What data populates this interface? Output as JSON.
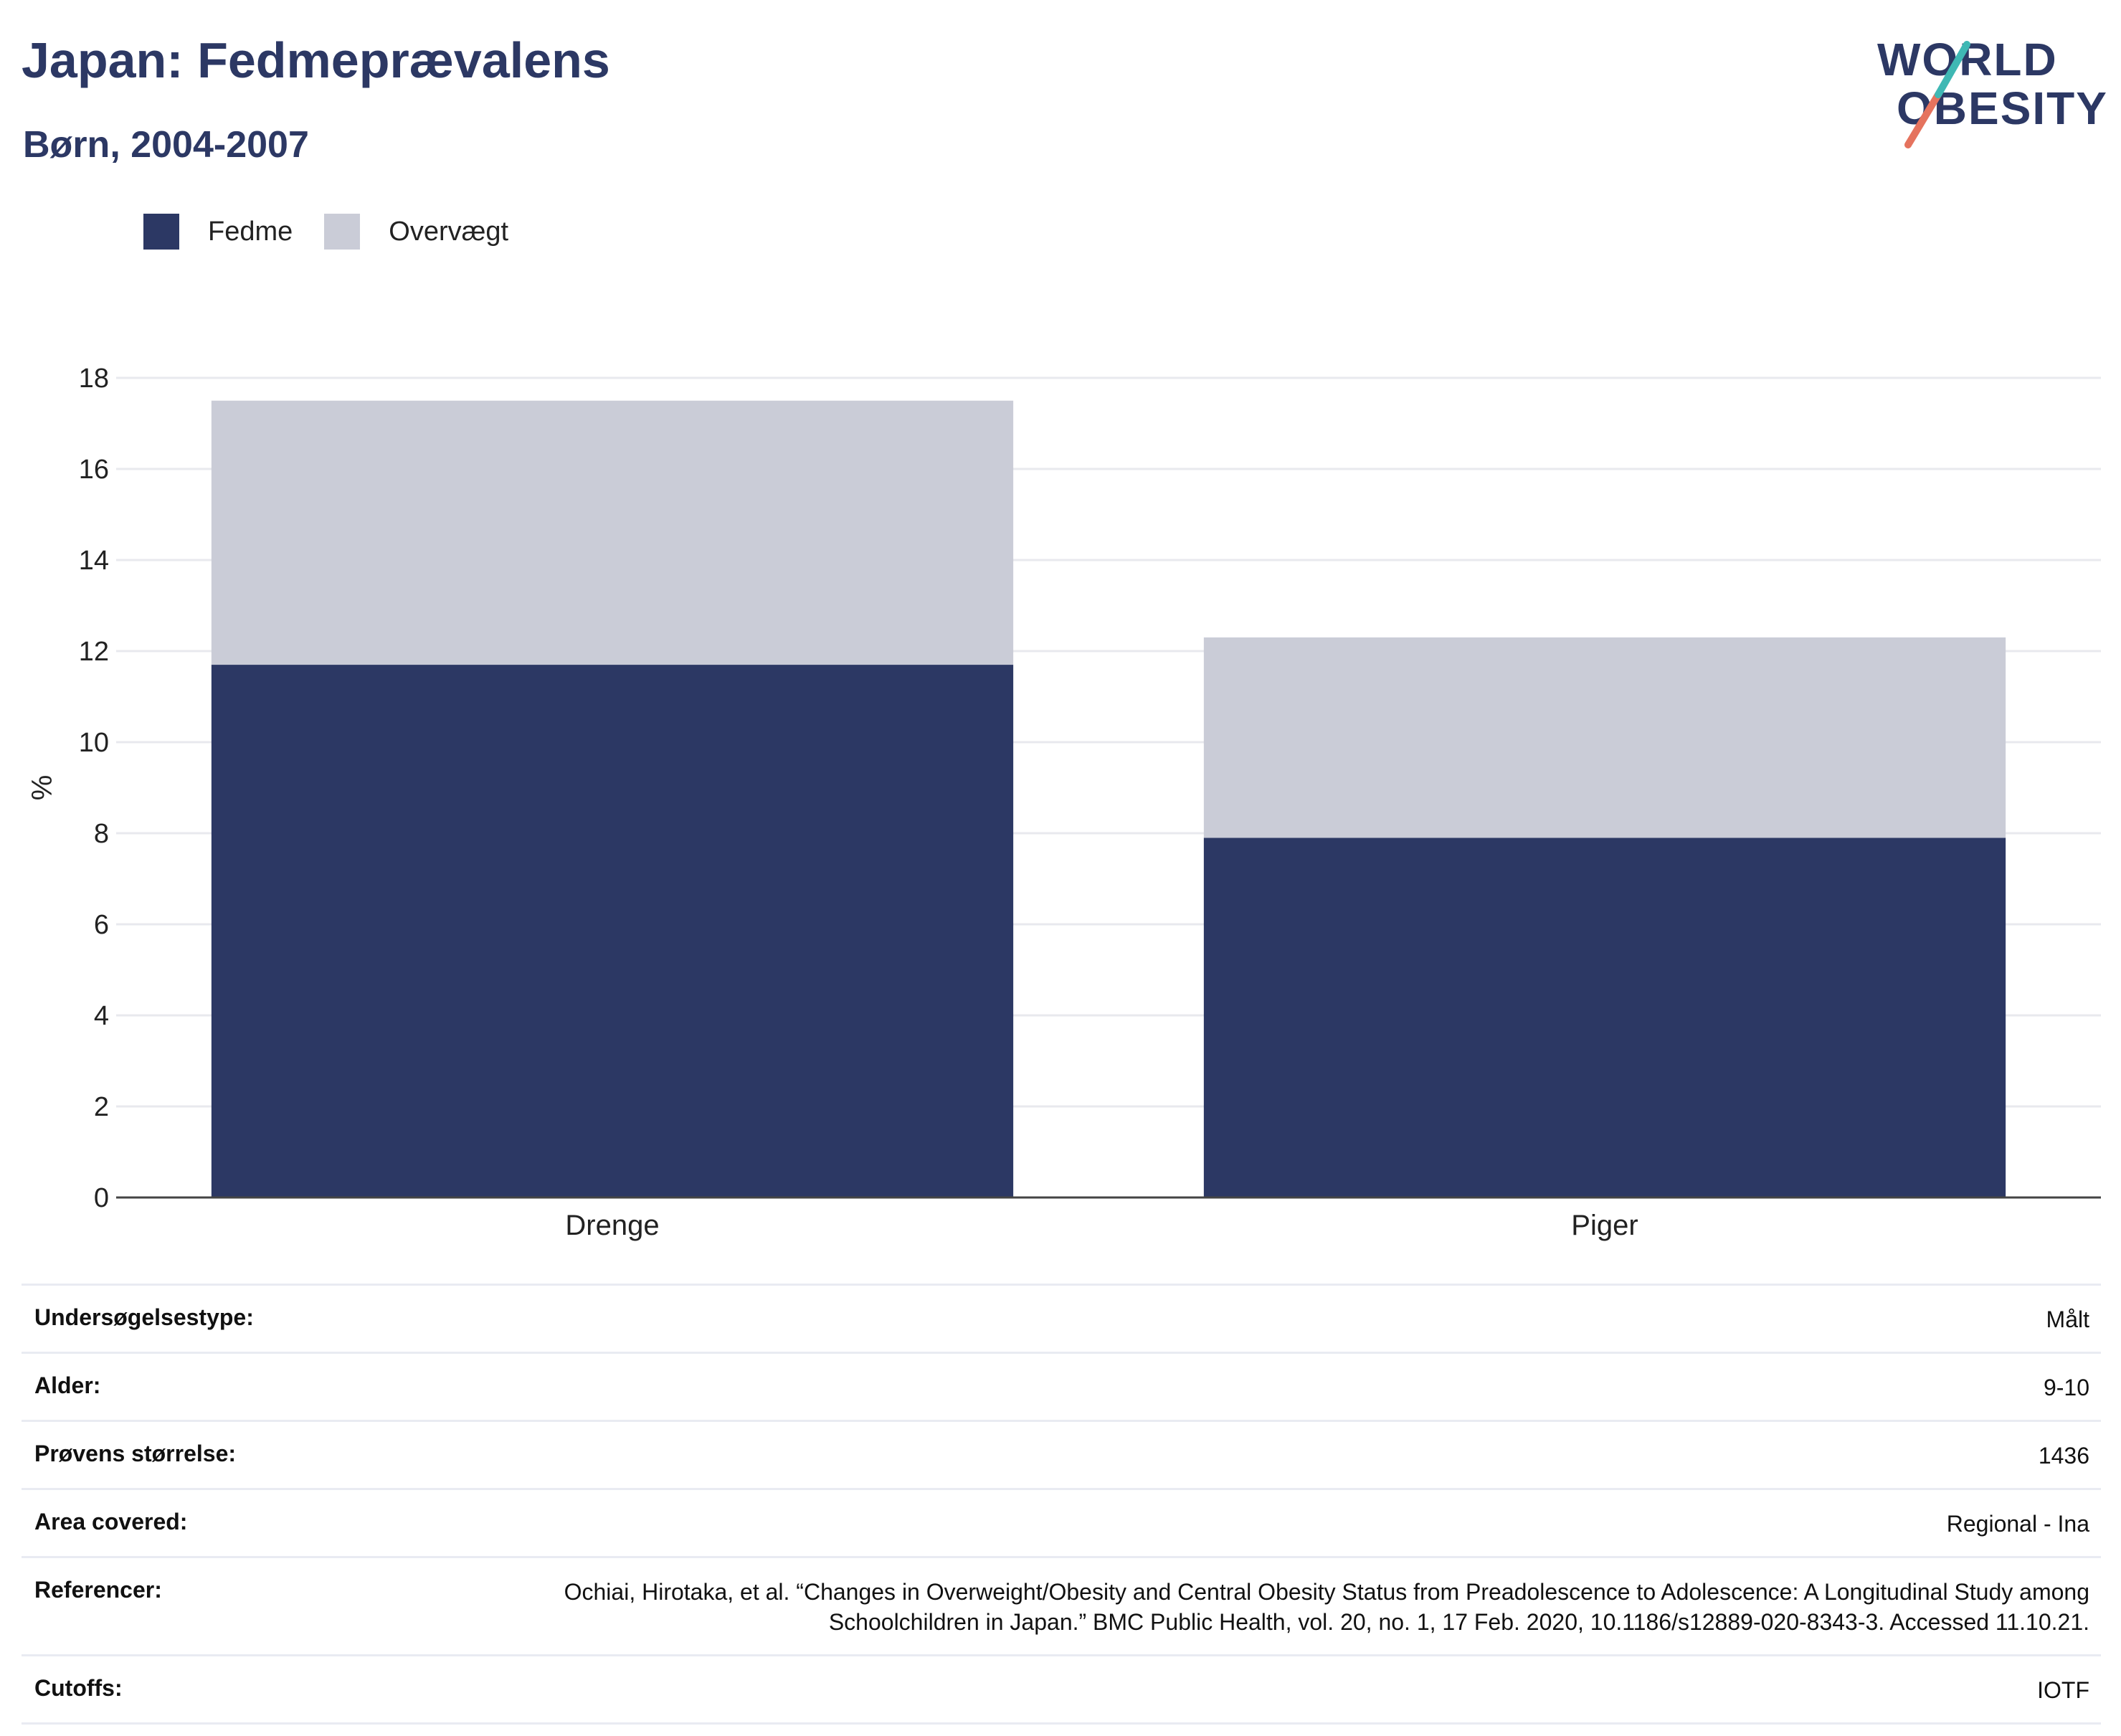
{
  "header": {
    "title": "Japan: Fedmeprævalens",
    "subtitle": "Børn, 2004-2007",
    "logo_line1": "WORLD",
    "logo_line2": "OBESITY"
  },
  "legend": [
    {
      "label": "Fedme",
      "color": "#2c3864"
    },
    {
      "label": "Overvægt",
      "color": "#caccd7"
    }
  ],
  "chart_data": {
    "type": "bar",
    "stacked": true,
    "categories": [
      "Drenge",
      "Piger"
    ],
    "series": [
      {
        "name": "Fedme",
        "color": "#2c3864",
        "values": [
          11.7,
          7.9
        ]
      },
      {
        "name": "Overvægt",
        "color": "#caccd7",
        "values": [
          5.8,
          4.4
        ]
      }
    ],
    "ylabel": "%",
    "ylim": [
      0,
      18
    ],
    "yticks": [
      0,
      2,
      4,
      6,
      8,
      10,
      12,
      14,
      16,
      18
    ],
    "grid": true,
    "legend_position": "top-left"
  },
  "meta": [
    {
      "key": "Undersøgelsestype:",
      "value": "Målt"
    },
    {
      "key": "Alder:",
      "value": "9-10"
    },
    {
      "key": "Prøvens størrelse:",
      "value": "1436"
    },
    {
      "key": "Area covered:",
      "value": "Regional - Ina"
    },
    {
      "key": "Referencer:",
      "value": "Ochiai, Hirotaka, et al. “Changes in Overweight/Obesity and Central Obesity Status from Preadolescence to Adolescence: A Longitudinal Study among Schoolchildren in Japan.” BMC Public Health, vol. 20, no. 1, 17 Feb. 2020, 10.1186/s12889-020-8343-3. Accessed 11.10.21."
    },
    {
      "key": "Cutoffs:",
      "value": "IOTF"
    }
  ]
}
